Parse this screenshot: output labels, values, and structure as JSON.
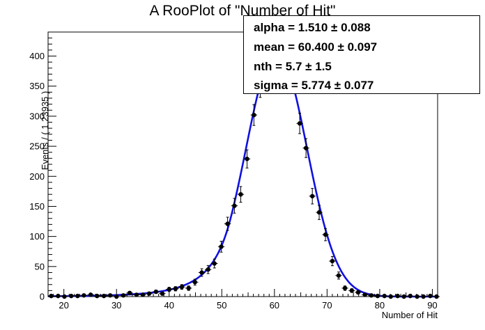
{
  "chart_data": {
    "type": "scatter",
    "title": "A RooPlot of \"Number of Hit\"",
    "xlabel": "Number of Hit",
    "ylabel": "Events / ( 1.23935 )",
    "xlim": [
      17,
      91
    ],
    "ylim": [
      0,
      440
    ],
    "xticks": [
      20,
      30,
      40,
      50,
      60,
      70,
      80,
      90
    ],
    "yticks": [
      0,
      50,
      100,
      150,
      200,
      250,
      300,
      350,
      400
    ],
    "bin_width": 1.23935,
    "series": [
      {
        "kind": "data_points",
        "color": "#000000",
        "x": [
          17.6,
          18.9,
          20.1,
          21.4,
          22.6,
          23.8,
          25.1,
          26.3,
          27.6,
          28.8,
          30.0,
          31.3,
          32.5,
          33.8,
          35.0,
          36.2,
          37.5,
          38.7,
          40.0,
          41.2,
          42.4,
          43.7,
          44.9,
          46.2,
          47.4,
          48.6,
          49.9,
          51.1,
          52.4,
          53.6,
          54.8,
          56.1,
          57.3,
          58.6,
          59.8,
          61.0,
          62.3,
          63.5,
          64.8,
          66.0,
          67.2,
          68.5,
          69.7,
          71.0,
          72.2,
          73.4,
          74.7,
          75.9,
          77.2,
          78.4,
          79.6,
          80.9,
          82.1,
          83.4,
          84.6,
          85.8,
          87.1,
          88.3,
          89.6,
          90.8
        ],
        "y": [
          1,
          1,
          0,
          1,
          1,
          2,
          3,
          1,
          1,
          2,
          0,
          2,
          6,
          3,
          3,
          5,
          8,
          5,
          12,
          13,
          16,
          14,
          24,
          40,
          45,
          55,
          83,
          121,
          151,
          170,
          229,
          302,
          350,
          385,
          400,
          402,
          390,
          362,
          288,
          247,
          167,
          140,
          103,
          59,
          35,
          14,
          10,
          7,
          3,
          2,
          1,
          1,
          0,
          1,
          0,
          1,
          0,
          0,
          1,
          0
        ]
      },
      {
        "kind": "fit_curve",
        "color": "#1010e0",
        "model": "crystal_ball_style_peak",
        "mean": 60.4,
        "sigma": 5.774,
        "peak": 408
      }
    ],
    "annotations": [
      {
        "label": "alpha =  1.510 ",
        "pm": "±",
        "value": " 0.088"
      },
      {
        "label": "mean =  60.400 ",
        "pm": "±",
        "value": " 0.097"
      },
      {
        "label": "nth =  5.7 ",
        "pm": "±",
        "value": " 1.5"
      },
      {
        "label": "sigma =  5.774 ",
        "pm": "±",
        "value": " 0.077"
      }
    ]
  }
}
